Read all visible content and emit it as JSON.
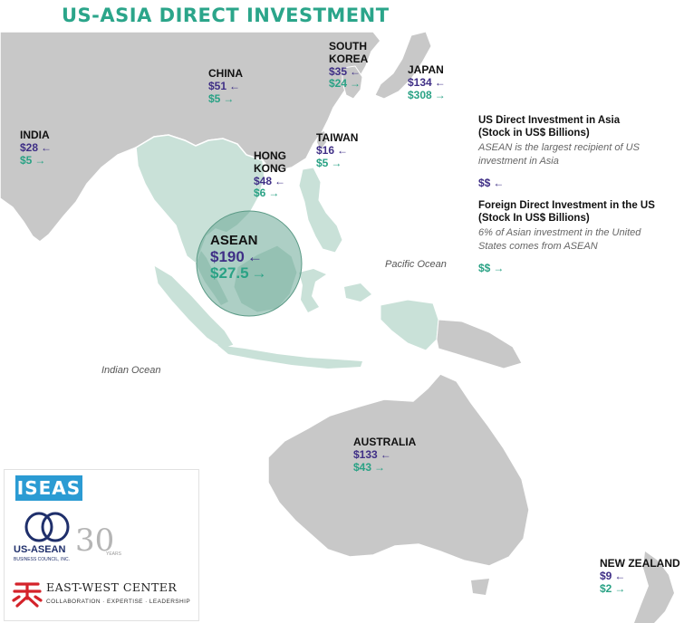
{
  "title": "US-ASIA DIRECT INVESTMENT",
  "colors": {
    "title": "#2ba58a",
    "us_investment": "#3f2f86",
    "foreign_investment": "#2aa285",
    "land": "#c8c8c8",
    "asean_land": "#c9e1d8",
    "asean_circle": "#6aa895"
  },
  "arrows": {
    "in_asia": "←",
    "in_us": "→"
  },
  "oceans": {
    "pacific": "Pacific Ocean",
    "indian": "Indian Ocean"
  },
  "countries": [
    {
      "key": "china",
      "name": "CHINA",
      "us_investment": "$51",
      "foreign_investment": "$5"
    },
    {
      "key": "south-korea",
      "name": "SOUTH KOREA",
      "name_line1": "SOUTH",
      "name_line2": "KOREA",
      "us_investment": "$35",
      "foreign_investment": "$24"
    },
    {
      "key": "japan",
      "name": "JAPAN",
      "us_investment": "$134",
      "foreign_investment": "$308"
    },
    {
      "key": "india",
      "name": "INDIA",
      "us_investment": "$28",
      "foreign_investment": "$5"
    },
    {
      "key": "taiwan",
      "name": "TAIWAN",
      "us_investment": "$16",
      "foreign_investment": "$5"
    },
    {
      "key": "hong-kong",
      "name": "HONG KONG",
      "name_line1": "HONG",
      "name_line2": "KONG",
      "us_investment": "$48",
      "foreign_investment": "$6"
    },
    {
      "key": "asean",
      "name": "ASEAN",
      "us_investment": "$190",
      "foreign_investment": "$27.5"
    },
    {
      "key": "australia",
      "name": "AUSTRALIA",
      "us_investment": "$133",
      "foreign_investment": "$43"
    },
    {
      "key": "new-zealand",
      "name": "NEW ZEALAND",
      "us_investment": "$9",
      "foreign_investment": "$2"
    }
  ],
  "legend": {
    "us_in_asia": {
      "title_line1": "US Direct Investment in Asia",
      "title_line2": "(Stock in US$ Billions)",
      "desc_line1": "ASEAN is the largest recipient of US",
      "desc_line2": "investment in Asia",
      "symbol": "$$"
    },
    "fdi_in_us": {
      "title_line1": "Foreign Direct Investment in the US",
      "title_line2": "(Stock In US$ Billions)",
      "desc_line1": "6% of Asian investment in the United",
      "desc_line2": "States comes from ASEAN",
      "symbol": "$$"
    }
  },
  "logos": {
    "iseas": "ISEAS",
    "usasean": "US-ASEAN",
    "usasean_sub": "BUSINESS COUNCIL, INC.",
    "usasean_years": "30",
    "usasean_years_word": "YEARS",
    "ewc": "EAST-WEST CENTER",
    "ewc_tagline": "COLLABORATION · EXPERTISE · LEADERSHIP"
  }
}
